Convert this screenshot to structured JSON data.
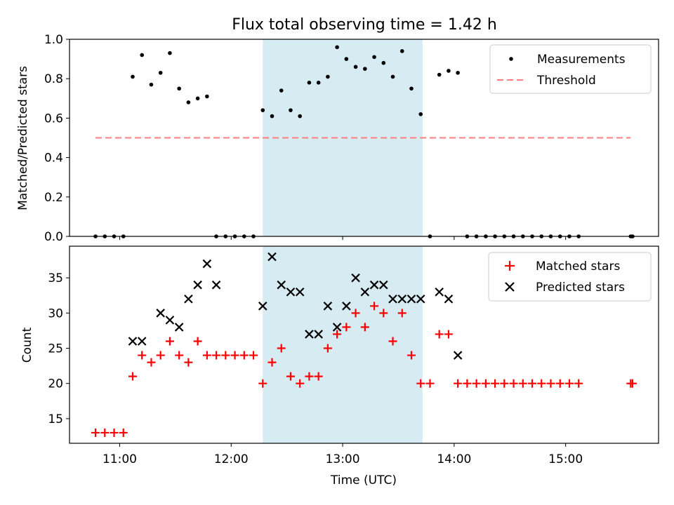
{
  "title": "Flux total observing time = 1.42 h",
  "colors": {
    "measurement": "#000000",
    "threshold": "#ff7f7f",
    "matched": "#ff0000",
    "predicted": "#000000",
    "span": "#add8e6"
  },
  "chart_data": [
    {
      "type": "scatter",
      "ylabel": "Matched/Predicted stars",
      "ylim": [
        0,
        1.0
      ],
      "yticks": [
        0.0,
        0.2,
        0.4,
        0.6,
        0.8,
        1.0
      ],
      "ytick_labels": [
        "0.0",
        "0.2",
        "0.4",
        "0.6",
        "0.8",
        "1.0"
      ],
      "xlim": [
        "10:33",
        "15:50"
      ],
      "xticks": [
        "11:00",
        "12:00",
        "13:00",
        "14:00",
        "15:00"
      ],
      "legend": "top-right",
      "shaded_span": [
        "12:17",
        "13:43"
      ],
      "series": [
        {
          "name": "Measurements",
          "type": "scatter",
          "x": [
            "10:47",
            "10:52",
            "10:57",
            "11:02",
            "11:07",
            "11:12",
            "11:17",
            "11:22",
            "11:27",
            "11:32",
            "11:37",
            "11:42",
            "11:47",
            "11:52",
            "11:57",
            "12:02",
            "12:07",
            "12:12",
            "12:17",
            "12:22",
            "12:27",
            "12:32",
            "12:37",
            "12:42",
            "12:47",
            "12:52",
            "12:57",
            "13:02",
            "13:07",
            "13:12",
            "13:17",
            "13:22",
            "13:27",
            "13:32",
            "13:37",
            "13:42",
            "13:47",
            "13:52",
            "13:57",
            "14:02",
            "14:07",
            "14:12",
            "14:17",
            "14:22",
            "14:27",
            "14:32",
            "14:37",
            "14:42",
            "14:47",
            "14:52",
            "14:57",
            "15:02",
            "15:07",
            "15:35",
            "15:36"
          ],
          "y": [
            0,
            0,
            0,
            0,
            0.81,
            0.92,
            0.77,
            0.83,
            0.93,
            0.75,
            0.68,
            0.7,
            0.71,
            0,
            0,
            0,
            0,
            0,
            0.64,
            0.61,
            0.74,
            0.64,
            0.61,
            0.78,
            0.78,
            0.81,
            0.96,
            0.9,
            0.86,
            0.85,
            0.91,
            0.88,
            0.81,
            0.94,
            0.75,
            0.62,
            0,
            0.82,
            0.84,
            0.83,
            0,
            0,
            0,
            0,
            0,
            0,
            0,
            0,
            0,
            0,
            0,
            0,
            0,
            0,
            0
          ]
        },
        {
          "name": "Threshold",
          "type": "line",
          "x": [
            "10:47",
            "15:35"
          ],
          "y": [
            0.5,
            0.5
          ]
        }
      ]
    },
    {
      "type": "scatter",
      "xlabel": "Time (UTC)",
      "ylabel": "Count",
      "ylim": [
        11.5,
        39.5
      ],
      "yticks": [
        15,
        20,
        25,
        30,
        35
      ],
      "ytick_labels": [
        "15",
        "20",
        "25",
        "30",
        "35"
      ],
      "xlim": [
        "10:33",
        "15:50"
      ],
      "xticks": [
        "11:00",
        "12:00",
        "13:00",
        "14:00",
        "15:00"
      ],
      "xtick_labels": [
        "11:00",
        "12:00",
        "13:00",
        "14:00",
        "15:00"
      ],
      "legend": "top-right",
      "shaded_span": [
        "12:17",
        "13:43"
      ],
      "series": [
        {
          "name": "Matched stars",
          "marker": "+",
          "x": [
            "10:47",
            "10:52",
            "10:57",
            "11:02",
            "11:07",
            "11:12",
            "11:17",
            "11:22",
            "11:27",
            "11:32",
            "11:37",
            "11:42",
            "11:47",
            "11:52",
            "11:57",
            "12:02",
            "12:07",
            "12:12",
            "12:17",
            "12:22",
            "12:27",
            "12:32",
            "12:37",
            "12:42",
            "12:47",
            "12:52",
            "12:57",
            "13:02",
            "13:07",
            "13:12",
            "13:17",
            "13:22",
            "13:27",
            "13:32",
            "13:37",
            "13:42",
            "13:47",
            "13:52",
            "13:57",
            "14:02",
            "14:07",
            "14:12",
            "14:17",
            "14:22",
            "14:27",
            "14:32",
            "14:37",
            "14:42",
            "14:47",
            "14:52",
            "14:57",
            "15:02",
            "15:07",
            "15:35",
            "15:36"
          ],
          "y": [
            13,
            13,
            13,
            13,
            21,
            24,
            23,
            24,
            26,
            24,
            23,
            26,
            24,
            24,
            24,
            24,
            24,
            24,
            20,
            23,
            25,
            21,
            20,
            21,
            21,
            25,
            27,
            28,
            30,
            28,
            31,
            30,
            26,
            30,
            24,
            20,
            20,
            27,
            27,
            20,
            20,
            20,
            20,
            20,
            20,
            20,
            20,
            20,
            20,
            20,
            20,
            20,
            20,
            20,
            20
          ]
        },
        {
          "name": "Predicted stars",
          "marker": "x",
          "x": [
            "11:07",
            "11:12",
            "11:22",
            "11:27",
            "11:32",
            "11:37",
            "11:42",
            "11:47",
            "11:52",
            "12:17",
            "12:22",
            "12:27",
            "12:32",
            "12:37",
            "12:42",
            "12:47",
            "12:52",
            "12:57",
            "13:02",
            "13:07",
            "13:12",
            "13:17",
            "13:22",
            "13:27",
            "13:32",
            "13:37",
            "13:42",
            "13:52",
            "13:57",
            "14:02"
          ],
          "y": [
            26,
            26,
            30,
            29,
            28,
            32,
            34,
            37,
            34,
            31,
            38,
            34,
            33,
            33,
            27,
            27,
            31,
            28,
            31,
            35,
            33,
            34,
            34,
            32,
            32,
            32,
            32,
            33,
            32,
            24
          ]
        }
      ]
    }
  ]
}
